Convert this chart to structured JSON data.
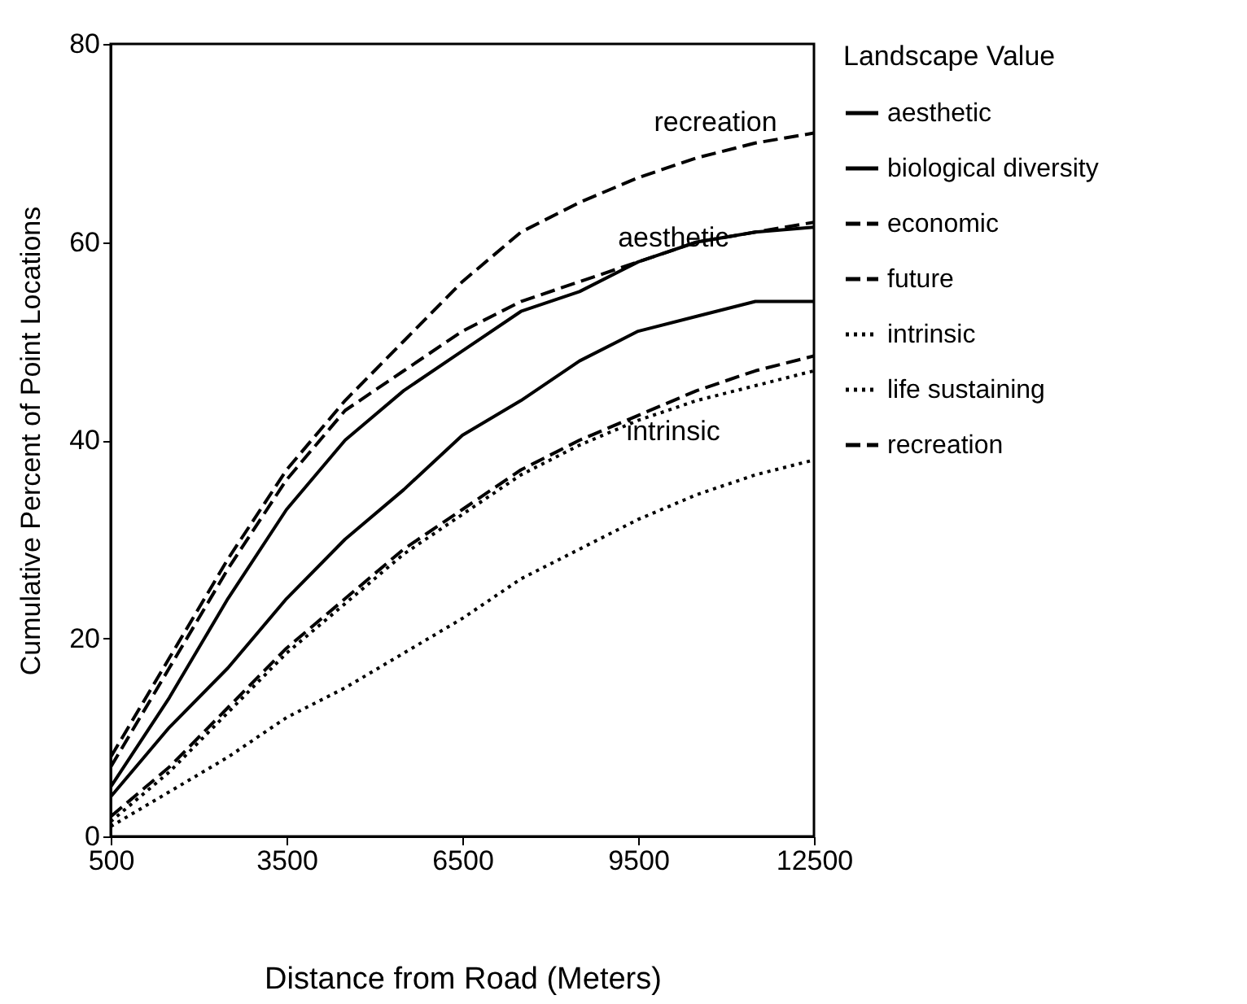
{
  "chart_data": {
    "type": "line",
    "xlabel": "Distance from Road (Meters)",
    "ylabel": "Cumulative Percent of Point Locations",
    "legend_title": "Landscape Value",
    "x": [
      500,
      1500,
      2500,
      3500,
      4500,
      5500,
      6500,
      7500,
      8500,
      9500,
      10500,
      11500,
      12500
    ],
    "series": [
      {
        "name": "aesthetic",
        "color": "#000000",
        "line_style": "solid",
        "values": [
          5,
          14,
          24,
          33,
          40,
          45,
          49,
          53,
          55,
          58,
          60,
          61,
          61.5
        ]
      },
      {
        "name": "biological diversity",
        "color": "#000000",
        "line_style": "solid",
        "values": [
          4,
          11,
          17,
          24,
          30,
          35,
          40.5,
          44,
          48,
          51,
          52.5,
          54,
          54
        ]
      },
      {
        "name": "economic",
        "color": "#000000",
        "line_style": "dashed",
        "values": [
          7,
          17,
          27,
          36,
          43,
          47,
          51,
          54,
          56,
          58,
          60,
          61,
          62
        ]
      },
      {
        "name": "future",
        "color": "#000000",
        "line_style": "dashed",
        "values": [
          2,
          7,
          13,
          19,
          24,
          29,
          33,
          37,
          40,
          42.5,
          45,
          47,
          48.5
        ]
      },
      {
        "name": "intrinsic",
        "color": "#000000",
        "line_style": "dotted",
        "values": [
          1,
          4.5,
          8,
          12,
          15,
          18.5,
          22,
          26,
          29,
          32,
          34.5,
          36.5,
          38
        ]
      },
      {
        "name": "life sustaining",
        "color": "#000000",
        "line_style": "dotted",
        "values": [
          1.5,
          6.5,
          12.5,
          18.5,
          23.5,
          28.5,
          32.5,
          36.5,
          39.5,
          42,
          44,
          45.5,
          47
        ]
      },
      {
        "name": "recreation",
        "color": "#000000",
        "line_style": "dashed",
        "values": [
          8,
          18,
          28,
          37,
          44,
          50,
          56,
          61,
          64,
          66.5,
          68.5,
          70,
          71
        ]
      }
    ],
    "xlim": [
      500,
      12500
    ],
    "xticks": [
      500,
      3500,
      6500,
      9500,
      12500
    ],
    "ylim": [
      0,
      80
    ],
    "yticks": [
      0,
      20,
      40,
      60,
      80
    ],
    "grid": false,
    "legend": "right",
    "annotations": [
      "recreation",
      "aesthetic",
      "intrinsic"
    ]
  }
}
